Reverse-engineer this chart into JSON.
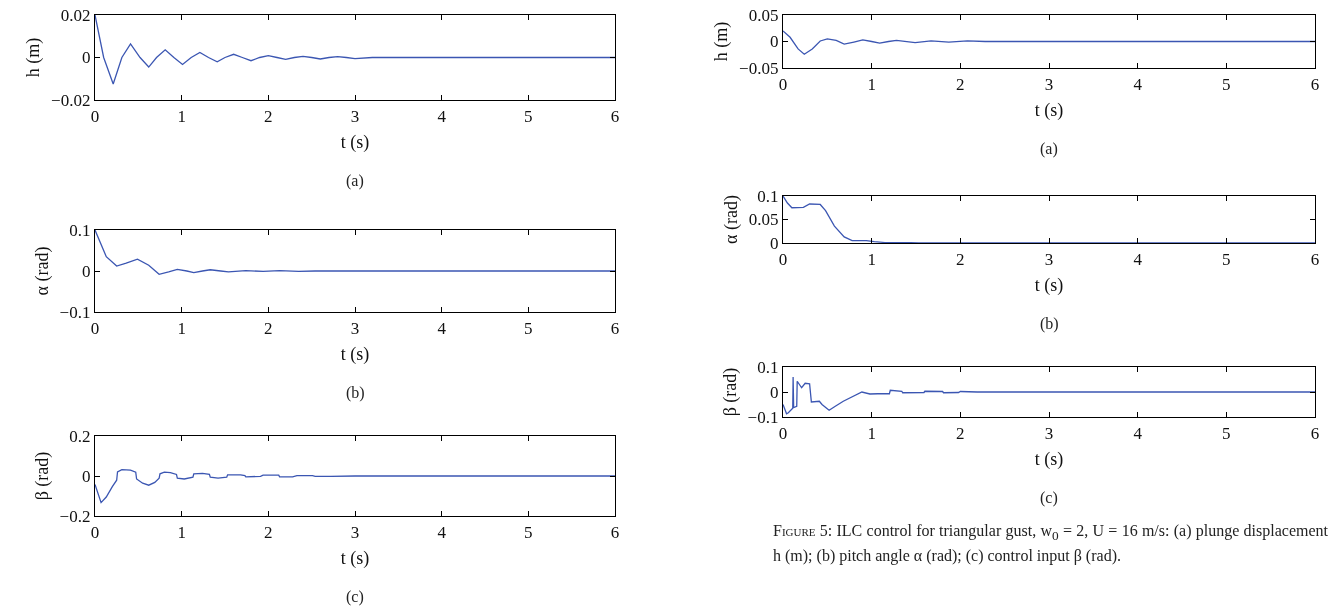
{
  "chart_data": [
    {
      "type": "line",
      "ylabel": "h (m)",
      "xlabel": "t (s)",
      "annotations": [
        "(a)"
      ],
      "color": "#3b56b2",
      "grid": false,
      "marker": "none",
      "xlim": [
        0,
        6
      ],
      "xticks": [
        0,
        1,
        2,
        3,
        4,
        5,
        6
      ],
      "ylim": [
        -0.02,
        0.02
      ],
      "yticks": [
        {
          "value": -0.02,
          "label": "−0.02"
        },
        0,
        0.02
      ],
      "x": [
        0,
        0.1,
        0.21,
        0.31,
        0.41,
        0.52,
        0.62,
        0.71,
        0.81,
        0.91,
        1.01,
        1.11,
        1.21,
        1.31,
        1.41,
        1.5,
        1.6,
        1.7,
        1.8,
        1.9,
        2.0,
        2.1,
        2.2,
        2.3,
        2.4,
        2.5,
        2.6,
        2.7,
        2.8,
        2.9,
        3.0,
        3.2,
        3.4,
        6
      ],
      "values": [
        0.02,
        0,
        -0.0125,
        0,
        0.0064,
        0,
        -0.0045,
        0,
        0.0036,
        0,
        -0.0033,
        0,
        0.0024,
        0,
        -0.002,
        0,
        0.0015,
        0,
        -0.0015,
        0,
        0.0009,
        0,
        -0.0009,
        0,
        0.0005,
        0,
        -0.0007,
        0,
        0.0004,
        0,
        -0.0005,
        0,
        0,
        0
      ]
    },
    {
      "type": "line",
      "ylabel": "α (rad)",
      "xlabel": "t (s)",
      "annotations": [
        "(b)"
      ],
      "color": "#3b56b2",
      "grid": false,
      "marker": "none",
      "xlim": [
        0,
        6
      ],
      "xticks": [
        0,
        1,
        2,
        3,
        4,
        5,
        6
      ],
      "ylim": [
        -0.1,
        0.1
      ],
      "yticks": [
        {
          "value": -0.1,
          "label": "−0.1"
        },
        0,
        0.1
      ],
      "x": [
        0,
        0.13,
        0.25,
        0.36,
        0.49,
        0.62,
        0.74,
        0.85,
        0.95,
        1.06,
        1.14,
        1.24,
        1.33,
        1.45,
        1.54,
        1.74,
        1.94,
        2.13,
        2.35,
        2.54,
        2.8,
        6
      ],
      "values": [
        0.1,
        0.035,
        0.012,
        0.019,
        0.029,
        0.014,
        -0.008,
        -0.002,
        0.004,
        0,
        -0.004,
        0,
        0.003,
        0,
        -0.002,
        0.001,
        -0.001,
        0.001,
        -0.001,
        0,
        0,
        0
      ]
    },
    {
      "type": "line",
      "ylabel": "β (rad)",
      "xlabel": "t (s)",
      "annotations": [
        "(c)"
      ],
      "color": "#3b56b2",
      "grid": false,
      "marker": "none",
      "xlim": [
        0,
        6
      ],
      "xticks": [
        0,
        1,
        2,
        3,
        4,
        5,
        6
      ],
      "ylim": [
        -0.2,
        0.2
      ],
      "yticks": [
        {
          "value": -0.2,
          "label": "−0.2"
        },
        0,
        0.2
      ],
      "x": [
        0,
        0.07,
        0.13,
        0.2,
        0.25,
        0.26,
        0.31,
        0.41,
        0.47,
        0.48,
        0.55,
        0.62,
        0.69,
        0.74,
        0.75,
        0.8,
        0.87,
        0.94,
        0.95,
        1.03,
        1.13,
        1.14,
        1.24,
        1.32,
        1.33,
        1.42,
        1.52,
        1.53,
        1.68,
        1.73,
        1.74,
        1.91,
        1.94,
        2.12,
        2.13,
        2.28,
        2.33,
        2.51,
        2.54,
        2.72,
        3,
        6
      ],
      "values": [
        -0.042,
        -0.133,
        -0.105,
        -0.053,
        -0.021,
        0.021,
        0.032,
        0.029,
        0.019,
        -0.015,
        -0.036,
        -0.046,
        -0.032,
        -0.011,
        0.011,
        0.019,
        0.017,
        0.008,
        -0.011,
        -0.015,
        -0.006,
        0.011,
        0.013,
        0.008,
        -0.006,
        -0.011,
        -0.006,
        0.006,
        0.006,
        0.002,
        -0.004,
        -0.002,
        0.004,
        0.004,
        -0.004,
        -0.004,
        0.002,
        0.002,
        -0.002,
        -0.002,
        0,
        0
      ]
    },
    {
      "type": "line",
      "ylabel": "h (m)",
      "xlabel": "t (s)",
      "annotations": [
        "(a)"
      ],
      "color": "#3b56b2",
      "grid": false,
      "marker": "none",
      "xlim": [
        0,
        6
      ],
      "xticks": [
        0,
        1,
        2,
        3,
        4,
        5,
        6
      ],
      "ylim": [
        -0.05,
        0.05
      ],
      "yticks": [
        {
          "value": -0.05,
          "label": "−0.05"
        },
        0,
        0.05
      ],
      "x": [
        0,
        0.08,
        0.17,
        0.24,
        0.33,
        0.42,
        0.5,
        0.6,
        0.69,
        0.8,
        0.9,
        1.0,
        1.09,
        1.19,
        1.28,
        1.49,
        1.67,
        1.87,
        2.08,
        2.28,
        2.6,
        6
      ],
      "values": [
        0.02,
        0.008,
        -0.014,
        -0.024,
        -0.014,
        0.001,
        0.005,
        0.002,
        -0.005,
        -0.001,
        0.003,
        0,
        -0.003,
        0,
        0.002,
        -0.002,
        0.001,
        -0.001,
        0.001,
        0,
        0,
        0
      ]
    },
    {
      "type": "line",
      "ylabel": "α (rad)",
      "xlabel": "t (s)",
      "annotations": [
        "(b)"
      ],
      "color": "#3b56b2",
      "grid": false,
      "marker": "none",
      "xlim": [
        0,
        6
      ],
      "xticks": [
        0,
        1,
        2,
        3,
        4,
        5,
        6
      ],
      "ylim": [
        0,
        0.1
      ],
      "yticks": [
        0,
        0.05,
        0.1
      ],
      "x": [
        0,
        0.05,
        0.1,
        0.23,
        0.3,
        0.42,
        0.48,
        0.58,
        0.69,
        0.78,
        0.94,
        1.03,
        1.15,
        1.44,
        1.53,
        6
      ],
      "values": [
        0.1,
        0.085,
        0.075,
        0.076,
        0.083,
        0.082,
        0.069,
        0.036,
        0.013,
        0.005,
        0.005,
        0.003,
        0.001,
        0.001,
        0,
        0
      ]
    },
    {
      "type": "line",
      "ylabel": "β (rad)",
      "xlabel": "t (s)",
      "annotations": [
        "(c)",
        "Figure 5: ILC control for triangular gust, w$_{0}$ = 2, U = 16 m/s: (a) plunge displacement h (m); (b) pitch angle α (rad); (c) control input β (rad)."
      ],
      "color": "#3b56b2",
      "grid": false,
      "marker": "none",
      "xlim": [
        0,
        6
      ],
      "xticks": [
        0,
        1,
        2,
        3,
        4,
        5,
        6
      ],
      "ylim": [
        -0.1,
        0.1
      ],
      "yticks": [
        {
          "value": -0.1,
          "label": "−0.1"
        },
        0,
        0.1
      ],
      "x": [
        0,
        0.04,
        0.06,
        0.11,
        0.114,
        0.12,
        0.155,
        0.16,
        0.21,
        0.25,
        0.3,
        0.32,
        0.41,
        0.44,
        0.52,
        0.59,
        0.68,
        0.89,
        0.98,
        1.07,
        1.2,
        1.21,
        1.34,
        1.35,
        1.59,
        1.6,
        1.8,
        1.81,
        1.98,
        2.0,
        2.19,
        6
      ],
      "values": [
        -0.05,
        -0.087,
        -0.083,
        -0.065,
        0.06,
        -0.062,
        -0.057,
        0.043,
        0.017,
        0.035,
        0.033,
        -0.04,
        -0.037,
        -0.05,
        -0.073,
        -0.057,
        -0.037,
        0,
        -0.008,
        -0.007,
        -0.007,
        0.007,
        0.003,
        -0.003,
        -0.002,
        0.003,
        0.002,
        -0.003,
        -0.002,
        0.002,
        0,
        0
      ]
    }
  ]
}
